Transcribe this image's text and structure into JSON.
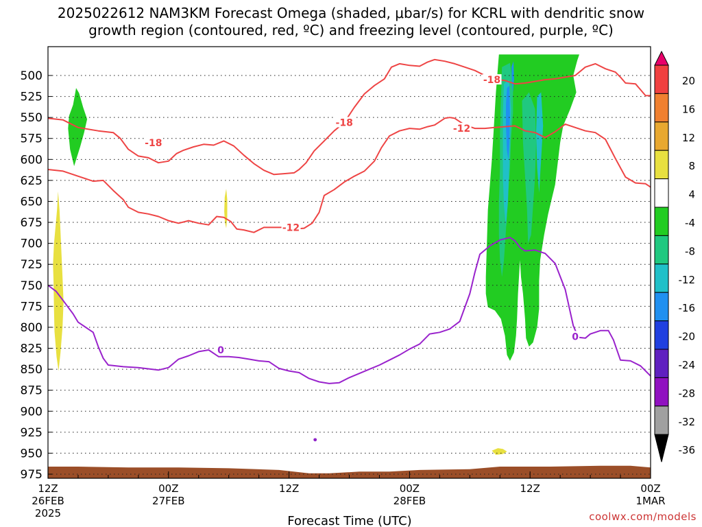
{
  "title_line1": "2025022612 NAM3KM Forecast Omega (shaded, μbar/s) for KCRL with dendritic snow",
  "title_line2": "growth region (contoured, red, ºC) and freezing level (contoured, purple, ºC)",
  "credit": "coolwx.com/models",
  "chart_data": {
    "type": "time-height cross section",
    "xlabel": "Forecast Time (UTC)",
    "x_ticks": [
      {
        "hour": 0,
        "lines": [
          "12Z",
          "26FEB",
          "2025"
        ]
      },
      {
        "hour": 12,
        "lines": [
          "00Z",
          "27FEB"
        ]
      },
      {
        "hour": 24,
        "lines": [
          "12Z"
        ]
      },
      {
        "hour": 36,
        "lines": [
          "00Z",
          "28FEB"
        ]
      },
      {
        "hour": 48,
        "lines": [
          "12Z"
        ]
      },
      {
        "hour": 60,
        "lines": [
          "00Z",
          "1MAR"
        ]
      }
    ],
    "xlim_hours": [
      0,
      60
    ],
    "y_pressure_ticks": [
      500,
      525,
      550,
      575,
      600,
      625,
      650,
      675,
      700,
      725,
      750,
      775,
      800,
      825,
      850,
      875,
      900,
      925,
      950,
      975
    ],
    "ylim_mb": [
      475,
      985
    ],
    "grid": "dotted horizontal at each pressure tick",
    "colorbar": {
      "labels": [
        "20",
        "16",
        "12",
        "8",
        "4",
        "-4",
        "-8",
        "-12",
        "-16",
        "-20",
        "-24",
        "-28",
        "-32",
        "-36"
      ],
      "colors": [
        "#e8006a",
        "#f04040",
        "#f08030",
        "#e8a830",
        "#e8e040",
        "#ffffff",
        "#22cc22",
        "#20c880",
        "#20c0c8",
        "#2090f0",
        "#2040e0",
        "#6020c0",
        "#9010c0",
        "#a0a0a0",
        "#000000"
      ]
    },
    "series": [
      {
        "name": "-18",
        "color": "#ee4444",
        "label_points": [
          [
            10.5,
            580
          ],
          [
            29.5,
            556
          ],
          [
            44.2,
            505
          ]
        ],
        "points": [
          [
            0,
            551
          ],
          [
            1.5,
            553
          ],
          [
            3,
            562
          ],
          [
            5,
            566
          ],
          [
            6.5,
            568
          ],
          [
            7.2,
            575
          ],
          [
            8,
            588
          ],
          [
            9,
            596
          ],
          [
            10,
            598
          ],
          [
            11,
            604
          ],
          [
            12,
            602
          ],
          [
            12.8,
            593
          ],
          [
            13.5,
            589
          ],
          [
            14.5,
            585
          ],
          [
            15.5,
            582
          ],
          [
            16.5,
            583
          ],
          [
            17.5,
            578
          ],
          [
            18.5,
            584
          ],
          [
            19.5,
            595
          ],
          [
            20.5,
            605
          ],
          [
            21.5,
            613
          ],
          [
            22.5,
            618
          ],
          [
            23.5,
            617
          ],
          [
            24.5,
            616
          ],
          [
            25,
            612
          ],
          [
            25.7,
            604
          ],
          [
            26.5,
            590
          ],
          [
            27.5,
            578
          ],
          [
            28.5,
            566
          ],
          [
            29.5,
            556
          ],
          [
            30.5,
            538
          ],
          [
            31.5,
            522
          ],
          [
            32.5,
            512
          ],
          [
            33.5,
            504
          ],
          [
            34.2,
            490
          ],
          [
            35,
            486
          ],
          [
            36,
            488
          ],
          [
            37,
            489
          ],
          [
            37.8,
            484
          ],
          [
            38.5,
            481
          ],
          [
            39.5,
            483
          ],
          [
            40.5,
            486
          ],
          [
            41.5,
            490
          ],
          [
            42.5,
            494
          ],
          [
            43.5,
            500
          ],
          [
            44.5,
            505
          ],
          [
            45.5,
            506
          ],
          [
            46.5,
            510
          ],
          [
            47.5,
            509
          ],
          [
            48.5,
            507
          ],
          [
            49.5,
            505
          ],
          [
            50.5,
            504
          ],
          [
            51.5,
            502
          ],
          [
            52.5,
            500
          ],
          [
            53.5,
            490
          ],
          [
            54.5,
            486
          ],
          [
            55.5,
            492
          ],
          [
            56.5,
            496
          ],
          [
            57,
            502
          ],
          [
            57.5,
            509
          ],
          [
            58.5,
            510
          ],
          [
            59.5,
            524
          ],
          [
            60,
            524
          ]
        ]
      },
      {
        "name": "-12",
        "color": "#ee4444",
        "label_points": [
          [
            24.2,
            681
          ],
          [
            41.2,
            563
          ]
        ],
        "points": [
          [
            0,
            612
          ],
          [
            1.5,
            614
          ],
          [
            3,
            620
          ],
          [
            4.5,
            626
          ],
          [
            5.5,
            625
          ],
          [
            6.5,
            637
          ],
          [
            7.5,
            648
          ],
          [
            8,
            657
          ],
          [
            9,
            663
          ],
          [
            10,
            665
          ],
          [
            11,
            668
          ],
          [
            12,
            673
          ],
          [
            13,
            676
          ],
          [
            14,
            673
          ],
          [
            15,
            676
          ],
          [
            16,
            678
          ],
          [
            16.8,
            668
          ],
          [
            17.5,
            669
          ],
          [
            18.2,
            674
          ],
          [
            18.8,
            683
          ],
          [
            19.5,
            684
          ],
          [
            20.5,
            687
          ],
          [
            21.5,
            681
          ],
          [
            22.5,
            681
          ],
          [
            23.5,
            681
          ],
          [
            24.5,
            683
          ],
          [
            25.5,
            682
          ],
          [
            26.3,
            676
          ],
          [
            27,
            663
          ],
          [
            27.5,
            643
          ],
          [
            28.5,
            636
          ],
          [
            29.5,
            627
          ],
          [
            30.5,
            620
          ],
          [
            31.5,
            614
          ],
          [
            32.5,
            602
          ],
          [
            33.2,
            586
          ],
          [
            34,
            572
          ],
          [
            35,
            566
          ],
          [
            36,
            563
          ],
          [
            37,
            564
          ],
          [
            37.8,
            561
          ],
          [
            38.5,
            559
          ],
          [
            39.5,
            551
          ],
          [
            40,
            550
          ],
          [
            40.5,
            551
          ],
          [
            41.5,
            559
          ],
          [
            42.5,
            563
          ],
          [
            43.5,
            563
          ],
          [
            44.5,
            562
          ],
          [
            45.5,
            561
          ],
          [
            46.5,
            560
          ],
          [
            47.5,
            566
          ],
          [
            48.5,
            568
          ],
          [
            49.5,
            574
          ],
          [
            50.5,
            567
          ],
          [
            51.5,
            558
          ],
          [
            52.5,
            562
          ],
          [
            53.5,
            566
          ],
          [
            54.5,
            568
          ],
          [
            55.5,
            576
          ],
          [
            56.5,
            599
          ],
          [
            57.5,
            621
          ],
          [
            58.5,
            628
          ],
          [
            59.5,
            629
          ],
          [
            60,
            633
          ]
        ]
      },
      {
        "name": "0",
        "color": "#9922cc",
        "label_points": [
          [
            17.2,
            827
          ],
          [
            52.5,
            811
          ]
        ],
        "points": [
          [
            0,
            750
          ],
          [
            0.8,
            757
          ],
          [
            1.5,
            768
          ],
          [
            2.5,
            784
          ],
          [
            3,
            794
          ],
          [
            4,
            802
          ],
          [
            4.5,
            806
          ],
          [
            5,
            823
          ],
          [
            5.5,
            837
          ],
          [
            6,
            845
          ],
          [
            7.5,
            847
          ],
          [
            9,
            848
          ],
          [
            11,
            851
          ],
          [
            12,
            848
          ],
          [
            13,
            838
          ],
          [
            14,
            834
          ],
          [
            15,
            829
          ],
          [
            16,
            827
          ],
          [
            17,
            835
          ],
          [
            18,
            835
          ],
          [
            19,
            836
          ],
          [
            20,
            838
          ],
          [
            21,
            840
          ],
          [
            22,
            841
          ],
          [
            23,
            849
          ],
          [
            24,
            852
          ],
          [
            25,
            854
          ],
          [
            26,
            861
          ],
          [
            27,
            865
          ],
          [
            28,
            867
          ],
          [
            29,
            866
          ],
          [
            30,
            860
          ],
          [
            31,
            855
          ],
          [
            32,
            850
          ],
          [
            33,
            845
          ],
          [
            34,
            839
          ],
          [
            35,
            833
          ],
          [
            36,
            826
          ],
          [
            37,
            820
          ],
          [
            38,
            808
          ],
          [
            39,
            806
          ],
          [
            40,
            802
          ],
          [
            41,
            793
          ],
          [
            42,
            760
          ],
          [
            42.5,
            735
          ],
          [
            43,
            713
          ],
          [
            44,
            703
          ],
          [
            45,
            696
          ],
          [
            46,
            693
          ],
          [
            46.5,
            697
          ],
          [
            47,
            705
          ],
          [
            47.5,
            709
          ],
          [
            48.5,
            708
          ],
          [
            49.5,
            712
          ],
          [
            50.5,
            724
          ],
          [
            51.5,
            755
          ],
          [
            52.3,
            798
          ],
          [
            52.8,
            812
          ],
          [
            53.5,
            813
          ],
          [
            54,
            808
          ],
          [
            55,
            804
          ],
          [
            55.8,
            804
          ],
          [
            56.3,
            815
          ],
          [
            57,
            839
          ],
          [
            58,
            840
          ],
          [
            59,
            846
          ],
          [
            60,
            858
          ]
        ]
      }
    ],
    "shaded_regions": [
      {
        "level": "-4",
        "color": "#22cc22"
      },
      {
        "level": "-8",
        "color": "#20c880"
      },
      {
        "level": "-12",
        "color": "#20c0c8"
      },
      {
        "level": "-16",
        "color": "#2090f0"
      },
      {
        "level": "4",
        "color": "#e8e040"
      }
    ],
    "terrain_color": "#9b4e28"
  }
}
